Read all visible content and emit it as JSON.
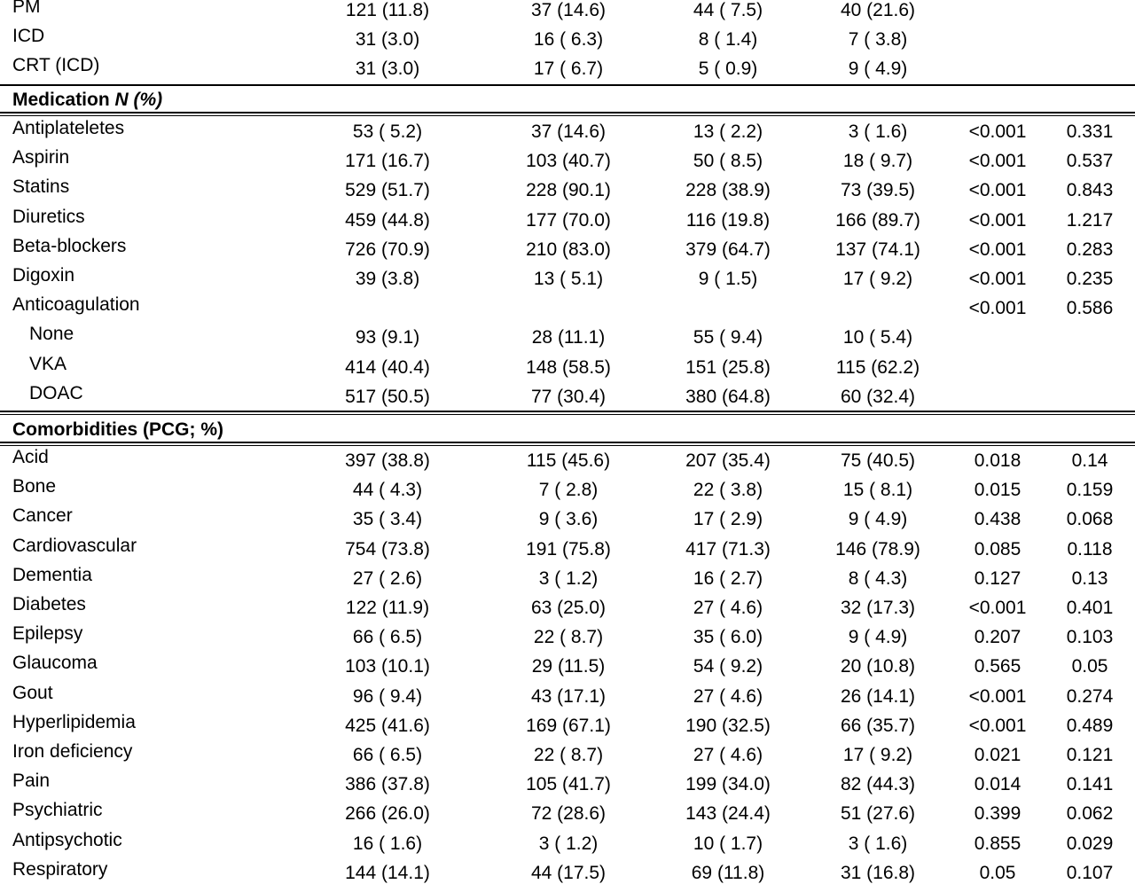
{
  "devices": [
    {
      "label": "PM",
      "values": [
        "121 (11.8)",
        "37 (14.6)",
        "44 ( 7.5)",
        "40 (21.6)",
        "",
        ""
      ]
    },
    {
      "label": "ICD",
      "values": [
        "31 (3.0)",
        "16 ( 6.3)",
        "8 ( 1.4)",
        "7 ( 3.8)",
        "",
        ""
      ]
    },
    {
      "label": "CRT (ICD)",
      "values": [
        "31 (3.0)",
        "17 ( 6.7)",
        "5 ( 0.9)",
        "9 ( 4.9)",
        "",
        ""
      ]
    }
  ],
  "medication": {
    "header_label": "Medication ",
    "header_italic": "N (%)",
    "rows": [
      {
        "label": "Antiplateletes",
        "indent": false,
        "values": [
          "53 ( 5.2)",
          "37 (14.6)",
          "13 ( 2.2)",
          "3 ( 1.6)",
          "<0.001",
          "0.331"
        ]
      },
      {
        "label": "Aspirin",
        "indent": false,
        "values": [
          "171 (16.7)",
          "103 (40.7)",
          "50 ( 8.5)",
          "18 ( 9.7)",
          "<0.001",
          "0.537"
        ]
      },
      {
        "label": "Statins",
        "indent": false,
        "values": [
          "529 (51.7)",
          "228 (90.1)",
          "228 (38.9)",
          "73 (39.5)",
          "<0.001",
          "0.843"
        ]
      },
      {
        "label": "Diuretics",
        "indent": false,
        "values": [
          "459 (44.8)",
          "177 (70.0)",
          "116 (19.8)",
          "166 (89.7)",
          "<0.001",
          "1.217"
        ]
      },
      {
        "label": "Beta-blockers",
        "indent": false,
        "values": [
          "726 (70.9)",
          "210 (83.0)",
          "379 (64.7)",
          "137 (74.1)",
          "<0.001",
          "0.283"
        ]
      },
      {
        "label": "Digoxin",
        "indent": false,
        "values": [
          "39 (3.8)",
          "13 ( 5.1)",
          "9 ( 1.5)",
          "17 ( 9.2)",
          "<0.001",
          "0.235"
        ]
      },
      {
        "label": "Anticoagulation",
        "indent": false,
        "values": [
          "",
          "",
          "",
          "",
          "<0.001",
          "0.586"
        ]
      },
      {
        "label": "None",
        "indent": true,
        "values": [
          "93 (9.1)",
          "28 (11.1)",
          "55 ( 9.4)",
          "10 ( 5.4)",
          "",
          ""
        ]
      },
      {
        "label": "VKA",
        "indent": true,
        "values": [
          "414 (40.4)",
          "148 (58.5)",
          "151 (25.8)",
          "115 (62.2)",
          "",
          ""
        ]
      },
      {
        "label": "DOAC",
        "indent": true,
        "values": [
          "517 (50.5)",
          "77 (30.4)",
          "380 (64.8)",
          "60 (32.4)",
          "",
          ""
        ]
      }
    ]
  },
  "comorbidities": {
    "header_label": "Comorbidities (PCG; %)",
    "rows": [
      {
        "label": "Acid",
        "values": [
          "397 (38.8)",
          "115 (45.6)",
          "207 (35.4)",
          "75 (40.5)",
          "0.018",
          "0.14"
        ]
      },
      {
        "label": "Bone",
        "values": [
          "44 ( 4.3)",
          "7 ( 2.8)",
          "22 ( 3.8)",
          "15 ( 8.1)",
          "0.015",
          "0.159"
        ]
      },
      {
        "label": "Cancer",
        "values": [
          "35 ( 3.4)",
          "9 ( 3.6)",
          "17 ( 2.9)",
          "9 ( 4.9)",
          "0.438",
          "0.068"
        ]
      },
      {
        "label": "Cardiovascular",
        "values": [
          "754 (73.8)",
          "191 (75.8)",
          "417 (71.3)",
          "146 (78.9)",
          "0.085",
          "0.118"
        ]
      },
      {
        "label": "Dementia",
        "values": [
          "27 ( 2.6)",
          "3 ( 1.2)",
          "16 ( 2.7)",
          "8 ( 4.3)",
          "0.127",
          "0.13"
        ]
      },
      {
        "label": "Diabetes",
        "values": [
          "122 (11.9)",
          "63 (25.0)",
          "27 ( 4.6)",
          "32 (17.3)",
          "<0.001",
          "0.401"
        ]
      },
      {
        "label": "Epilepsy",
        "values": [
          "66 ( 6.5)",
          "22 ( 8.7)",
          "35 ( 6.0)",
          "9 ( 4.9)",
          "0.207",
          "0.103"
        ]
      },
      {
        "label": "Glaucoma",
        "values": [
          "103 (10.1)",
          "29 (11.5)",
          "54 ( 9.2)",
          "20 (10.8)",
          "0.565",
          "0.05"
        ]
      },
      {
        "label": "Gout",
        "values": [
          "96 ( 9.4)",
          "43 (17.1)",
          "27 ( 4.6)",
          "26 (14.1)",
          "<0.001",
          "0.274"
        ]
      },
      {
        "label": "Hyperlipidemia",
        "values": [
          "425 (41.6)",
          "169 (67.1)",
          "190 (32.5)",
          "66 (35.7)",
          "<0.001",
          "0.489"
        ]
      },
      {
        "label": "Iron deficiency",
        "values": [
          "66 ( 6.5)",
          "22 ( 8.7)",
          "27 ( 4.6)",
          "17 ( 9.2)",
          "0.021",
          "0.121"
        ]
      },
      {
        "label": "Pain",
        "values": [
          "386 (37.8)",
          "105 (41.7)",
          "199 (34.0)",
          "82 (44.3)",
          "0.014",
          "0.141"
        ]
      },
      {
        "label": "Psychiatric",
        "values": [
          "266 (26.0)",
          "72 (28.6)",
          "143 (24.4)",
          "51 (27.6)",
          "0.399",
          "0.062"
        ]
      },
      {
        "label": "Antipsychotic",
        "values": [
          "16 ( 1.6)",
          "3 ( 1.2)",
          "10 ( 1.7)",
          "3 ( 1.6)",
          "0.855",
          "0.029"
        ]
      },
      {
        "label": "Respiratory",
        "values": [
          "144 (14.1)",
          "44 (17.5)",
          "69 (11.8)",
          "31 (16.8)",
          "0.05",
          "0.107"
        ]
      }
    ]
  }
}
